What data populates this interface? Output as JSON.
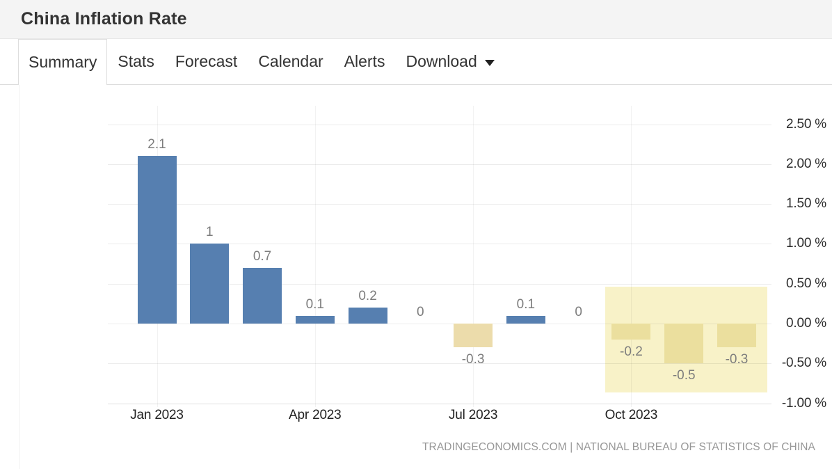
{
  "header": {
    "title": "China Inflation Rate"
  },
  "tabs": [
    {
      "label": "Summary",
      "active": true
    },
    {
      "label": "Stats",
      "active": false
    },
    {
      "label": "Forecast",
      "active": false
    },
    {
      "label": "Calendar",
      "active": false
    },
    {
      "label": "Alerts",
      "active": false
    },
    {
      "label": "Download",
      "active": false,
      "has_caret": true
    }
  ],
  "attribution": "TRADINGECONOMICS.COM | NATIONAL BUREAU OF STATISTICS OF CHINA",
  "chart_data": {
    "type": "bar",
    "title": "China Inflation Rate",
    "unit": "%",
    "categories": [
      "Jan 2023",
      "Feb 2023",
      "Mar 2023",
      "Apr 2023",
      "May 2023",
      "Jun 2023",
      "Jul 2023",
      "Aug 2023",
      "Sep 2023",
      "Oct 2023",
      "Nov 2023",
      "Dec 2023"
    ],
    "values": [
      2.1,
      1,
      0.7,
      0.1,
      0.2,
      0,
      -0.3,
      0.1,
      0,
      -0.2,
      -0.5,
      -0.3
    ],
    "ylim": [
      -1.0,
      2.5
    ],
    "grid": true,
    "legend": "none",
    "y_ticks": [
      {
        "value": 2.5,
        "label": "2.50 %"
      },
      {
        "value": 2.0,
        "label": "2.00 %"
      },
      {
        "value": 1.5,
        "label": "1.50 %"
      },
      {
        "value": 1.0,
        "label": "1.00 %"
      },
      {
        "value": 0.5,
        "label": "0.50 %"
      },
      {
        "value": 0.0,
        "label": "0.00 %"
      },
      {
        "value": -0.5,
        "label": "-0.50 %"
      },
      {
        "value": -1.0,
        "label": "-1.00 %"
      }
    ],
    "x_ticks": [
      {
        "month_index": 0,
        "label": "Jan 2023"
      },
      {
        "month_index": 3,
        "label": "Apr 2023"
      },
      {
        "month_index": 6,
        "label": "Jul 2023"
      },
      {
        "month_index": 9,
        "label": "Oct 2023"
      }
    ],
    "colors": {
      "positive_bar": "#567fb0",
      "negative_bar": "#ecdcab",
      "negative_bar_in_highlight": "#ebdf9e",
      "highlight_region": "#f8f2c8"
    },
    "highlight": {
      "start_category": "Oct 2023",
      "end_category": "Dec 2023",
      "top_value": 0.46,
      "bottom_value": -0.86
    },
    "source_text": "TRADINGECONOMICS.COM | NATIONAL BUREAU OF STATISTICS OF CHINA"
  }
}
